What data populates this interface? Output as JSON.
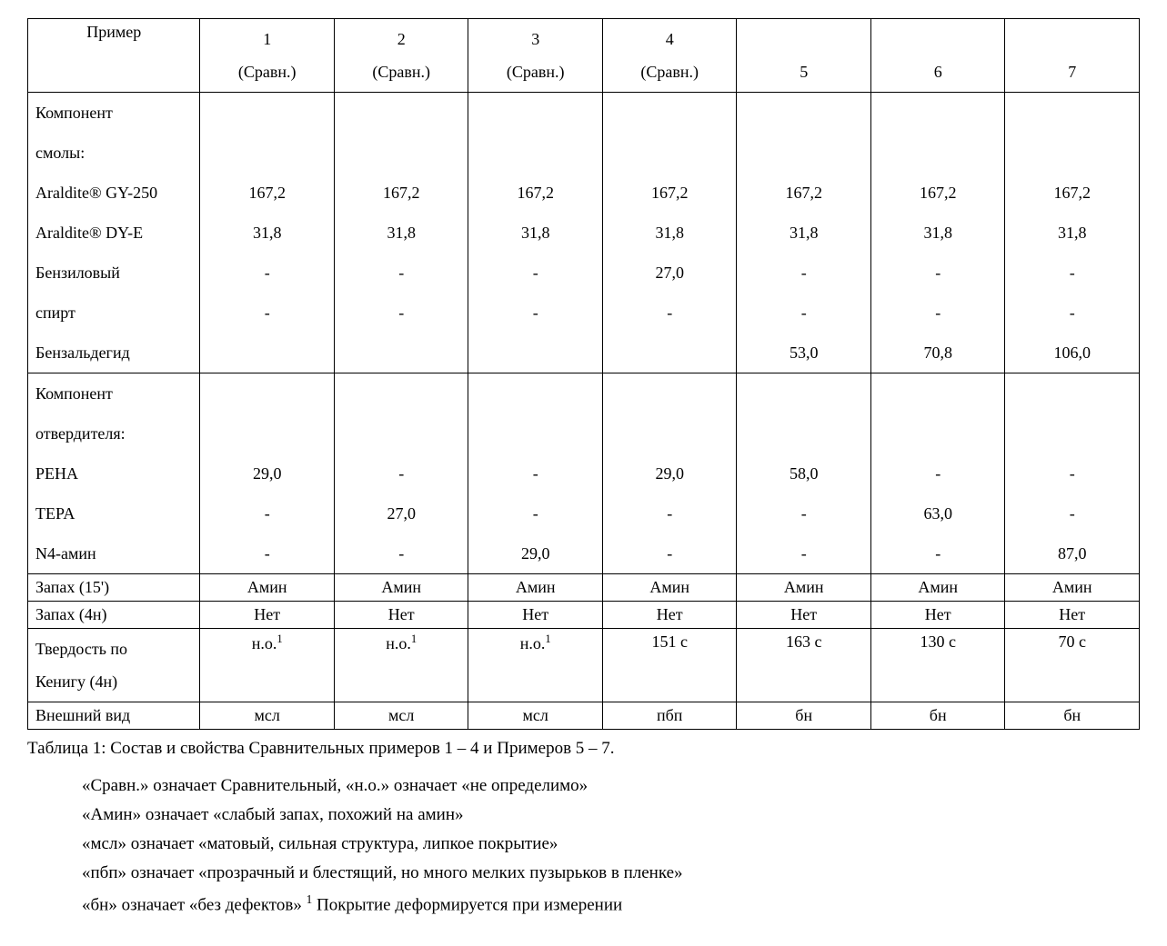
{
  "table": {
    "header_label": "Пример",
    "columns": [
      {
        "num": "1",
        "sub": "(Сравн.)"
      },
      {
        "num": "2",
        "sub": "(Сравн.)"
      },
      {
        "num": "3",
        "sub": "(Сравн.)"
      },
      {
        "num": "4",
        "sub": "(Сравн.)"
      },
      {
        "num": "",
        "sub": "5"
      },
      {
        "num": "",
        "sub": "6"
      },
      {
        "num": "",
        "sub": "7"
      }
    ],
    "section1": {
      "title_lines": [
        "Компонент",
        "смолы:"
      ],
      "rows": [
        {
          "label": "Araldite® GY-250",
          "vals": [
            "167,2",
            "167,2",
            "167,2",
            "167,2",
            "167,2",
            "167,2",
            "167,2"
          ]
        },
        {
          "label": "Araldite® DY-E",
          "vals": [
            "31,8",
            "31,8",
            "31,8",
            "31,8",
            "31,8",
            "31,8",
            "31,8"
          ]
        },
        {
          "label": "Бензиловый",
          "vals": [
            "-",
            "-",
            "-",
            "27,0",
            "-",
            "-",
            "-"
          ]
        },
        {
          "label": "спирт",
          "vals": [
            "-",
            "-",
            "-",
            "-",
            "-",
            "-",
            "-"
          ]
        },
        {
          "label": "Бензальдегид",
          "vals": [
            "",
            "",
            "",
            "",
            "53,0",
            "70,8",
            "106,0"
          ]
        }
      ]
    },
    "section2": {
      "title_lines": [
        "Компонент",
        "отвердителя:"
      ],
      "rows": [
        {
          "label": "PEHA",
          "vals": [
            "29,0",
            "-",
            "-",
            "29,0",
            "58,0",
            "-",
            "-"
          ]
        },
        {
          "label": "TEPA",
          "vals": [
            "-",
            "27,0",
            "-",
            "-",
            "-",
            "63,0",
            "-"
          ]
        },
        {
          "label": "N4-амин",
          "vals": [
            "-",
            "-",
            "29,0",
            "-",
            "-",
            "-",
            "87,0"
          ]
        }
      ]
    },
    "simple_rows": [
      {
        "label": "Запах (15')",
        "vals": [
          "Амин",
          "Амин",
          "Амин",
          "Амин",
          "Амин",
          "Амин",
          "Амин"
        ]
      },
      {
        "label": "Запах (4н)",
        "vals": [
          "Нет",
          "Нет",
          "Нет",
          "Нет",
          "Нет",
          "Нет",
          "Нет"
        ]
      }
    ],
    "hardness_row": {
      "label_lines": [
        "Твердость по",
        "Кенигу (4н)"
      ],
      "vals_html": [
        "н.о.<sup>1</sup>",
        "н.о.<sup>1</sup>",
        "н.о.<sup>1</sup>",
        "151 с",
        "163 с",
        "130 с",
        "70 с"
      ]
    },
    "appearance_row": {
      "label": "Внешний вид",
      "vals": [
        "мсл",
        "мсл",
        "мсл",
        "пбп",
        "бн",
        "бн",
        "бн"
      ]
    }
  },
  "caption": "Таблица 1: Состав и свойства Сравнительных примеров 1 – 4 и Примеров 5 – 7.",
  "notes": [
    "«Сравн.» означает Сравнительный, «н.о.» означает «не определимо»",
    "«Амин» означает «слабый запах, похожий на амин»",
    "«мсл» означает «матовый, сильная структура, липкое покрытие»",
    "«пбп» означает «прозрачный и блестящий, но много мелких пузырьков в пленке»"
  ],
  "note_last_html": "«бн» означает «без дефектов» <sup>1</sup> Покрытие деформируется при измерении"
}
